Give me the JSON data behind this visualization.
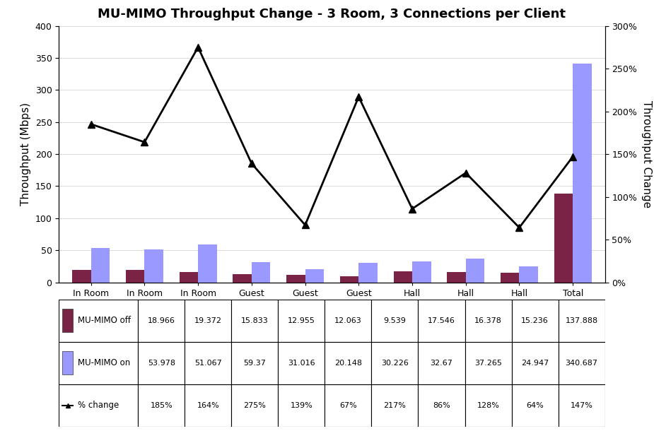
{
  "title": "MU-MIMO Throughput Change - 3 Room, 3 Connections per Client",
  "categories": [
    "In Room",
    "In Room",
    "In Room",
    "Guest",
    "Guest",
    "Guest",
    "Hall",
    "Hall",
    "Hall",
    "Total"
  ],
  "mimo_off": [
    18.966,
    19.372,
    15.833,
    12.955,
    12.063,
    9.539,
    17.546,
    16.378,
    15.236,
    137.888
  ],
  "mimo_on": [
    53.978,
    51.067,
    59.37,
    31.016,
    20.148,
    30.226,
    32.67,
    37.265,
    24.947,
    340.687
  ],
  "pct_change": [
    185,
    164,
    275,
    139,
    67,
    217,
    86,
    128,
    64,
    147
  ],
  "bar_color_off": "#7B2346",
  "bar_color_on": "#9999FF",
  "line_color": "#000000",
  "ylabel_left": "Throughput (Mbps)",
  "ylabel_right": "Throughput Change",
  "ylim_left": [
    0,
    400
  ],
  "ylim_right": [
    0,
    300
  ],
  "yticks_left": [
    0,
    50,
    100,
    150,
    200,
    250,
    300,
    350,
    400
  ],
  "yticks_right": [
    0,
    50,
    100,
    150,
    200,
    250,
    300
  ],
  "ytick_labels_right": [
    "0%",
    "50%",
    "100%",
    "150%",
    "200%",
    "250%",
    "300%"
  ],
  "table_row_labels": [
    "MU-MIMO off",
    "MU-MIMO on",
    "% change"
  ],
  "pct_labels": [
    "185%",
    "164%",
    "275%",
    "139%",
    "67%",
    "217%",
    "86%",
    "128%",
    "64%",
    "147%"
  ],
  "mimo_off_str": [
    "18.966",
    "19.372",
    "15.833",
    "12.955",
    "12.063",
    "9.539",
    "17.546",
    "16.378",
    "15.236",
    "137.888"
  ],
  "mimo_on_str": [
    "53.978",
    "51.067",
    "59.37",
    "31.016",
    "20.148",
    "30.226",
    "32.67",
    "37.265",
    "24.947",
    "340.687"
  ],
  "bar_width": 0.35,
  "fig_width": 9.25,
  "fig_height": 6.1,
  "table_font_size": 8.5,
  "title_fontsize": 13
}
